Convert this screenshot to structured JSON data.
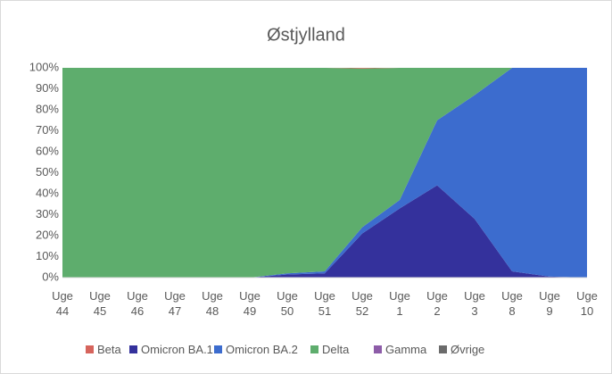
{
  "chart_data": {
    "type": "area",
    "stacked": true,
    "title": "Østjylland",
    "categories": [
      "Uge 44",
      "Uge 45",
      "Uge 46",
      "Uge 47",
      "Uge 48",
      "Uge 49",
      "Uge 50",
      "Uge 51",
      "Uge 52",
      "Uge 1",
      "Uge 2",
      "Uge 3",
      "Uge 8",
      "Uge 9",
      "Uge 10"
    ],
    "series": [
      {
        "name": "Beta",
        "color": "#d6645c",
        "values": [
          0,
          0,
          0,
          0,
          0,
          0,
          0,
          0,
          0.3,
          0,
          0,
          0,
          0,
          0,
          0
        ]
      },
      {
        "name": "Omicron BA.1",
        "color": "#34319c",
        "values": [
          0,
          0,
          0,
          0,
          0,
          0,
          1.5,
          2,
          21,
          33,
          44,
          28,
          3,
          0.5,
          0
        ]
      },
      {
        "name": "Omicron BA.2",
        "color": "#3c6cce",
        "values": [
          0,
          0,
          0,
          0,
          0,
          0,
          0.5,
          1,
          3,
          4,
          31,
          59,
          97,
          99.5,
          100
        ]
      },
      {
        "name": "Delta",
        "color": "#5ead6d",
        "values": [
          100,
          100,
          100,
          100,
          100,
          100,
          98,
          97,
          75.7,
          63,
          25,
          13,
          0,
          0,
          0
        ]
      },
      {
        "name": "Gamma",
        "color": "#8d5ca8",
        "values": [
          0,
          0,
          0,
          0,
          0,
          0,
          0,
          0,
          0,
          0,
          0,
          0,
          0,
          0,
          0
        ]
      },
      {
        "name": "Øvrige",
        "color": "#6b6b6b",
        "values": [
          0,
          0,
          0,
          0,
          0,
          0,
          0,
          0,
          0,
          0,
          0,
          0,
          0,
          0,
          0
        ]
      }
    ],
    "stack_order": [
      "Omicron BA.1",
      "Omicron BA.2",
      "Delta",
      "Beta",
      "Gamma",
      "Øvrige"
    ],
    "ylim": [
      0,
      100
    ],
    "yticks": [
      {
        "value": 0,
        "label": "0%"
      },
      {
        "value": 10,
        "label": "10%"
      },
      {
        "value": 20,
        "label": "20%"
      },
      {
        "value": 30,
        "label": "30%"
      },
      {
        "value": 40,
        "label": "40%"
      },
      {
        "value": 50,
        "label": "50%"
      },
      {
        "value": 60,
        "label": "60%"
      },
      {
        "value": 70,
        "label": "70%"
      },
      {
        "value": 80,
        "label": "80%"
      },
      {
        "value": 90,
        "label": "90%"
      },
      {
        "value": 100,
        "label": "100%"
      }
    ],
    "legend": "bottom"
  }
}
